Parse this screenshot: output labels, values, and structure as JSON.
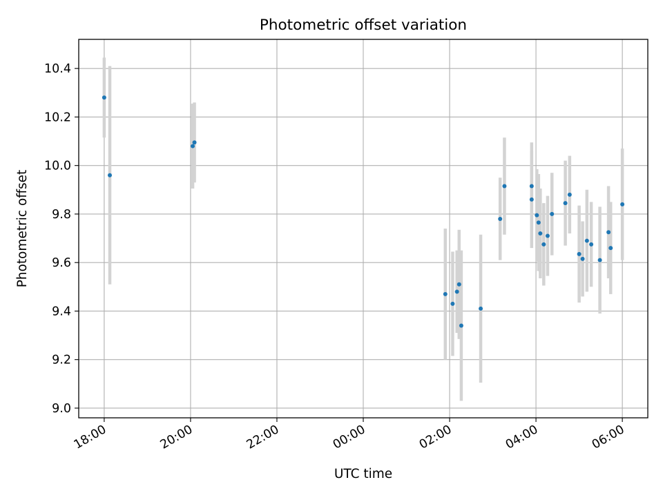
{
  "chart_data": {
    "type": "scatter",
    "title": "Photometric offset variation",
    "xlabel": "UTC time",
    "ylabel": "Photometric offset",
    "x_ticks": [
      {
        "label": "18:00",
        "hours": 0
      },
      {
        "label": "20:00",
        "hours": 2
      },
      {
        "label": "22:00",
        "hours": 4
      },
      {
        "label": "00:00",
        "hours": 6
      },
      {
        "label": "02:00",
        "hours": 8
      },
      {
        "label": "04:00",
        "hours": 10
      },
      {
        "label": "06:00",
        "hours": 12
      }
    ],
    "xlim_hours": [
      -0.59,
      12.59
    ],
    "y_ticks": [
      9.0,
      9.2,
      9.4,
      9.6,
      9.8,
      10.0,
      10.2,
      10.4
    ],
    "ylim": [
      8.96,
      10.52
    ],
    "grid": true,
    "colors": {
      "marker": "#1f77b4",
      "errorbar": "#d3d3d3",
      "grid": "#b0b0b0"
    },
    "points": [
      {
        "x": 0.0,
        "y": 10.28,
        "err": 0.165
      },
      {
        "x": 0.13,
        "y": 9.96,
        "err": 0.45
      },
      {
        "x": 2.05,
        "y": 10.08,
        "err": 0.175
      },
      {
        "x": 2.09,
        "y": 10.095,
        "err": 0.165
      },
      {
        "x": 7.9,
        "y": 9.47,
        "err": 0.27
      },
      {
        "x": 8.07,
        "y": 9.43,
        "err": 0.215
      },
      {
        "x": 8.17,
        "y": 9.48,
        "err": 0.17
      },
      {
        "x": 8.22,
        "y": 9.51,
        "err": 0.225
      },
      {
        "x": 8.27,
        "y": 9.34,
        "err": 0.31
      },
      {
        "x": 8.72,
        "y": 9.41,
        "err": 0.305
      },
      {
        "x": 9.17,
        "y": 9.78,
        "err": 0.17
      },
      {
        "x": 9.27,
        "y": 9.915,
        "err": 0.2
      },
      {
        "x": 9.9,
        "y": 9.915,
        "err": 0.18
      },
      {
        "x": 9.9,
        "y": 9.86,
        "err": 0.2
      },
      {
        "x": 10.02,
        "y": 9.795,
        "err": 0.19
      },
      {
        "x": 10.06,
        "y": 9.765,
        "err": 0.2
      },
      {
        "x": 10.1,
        "y": 9.72,
        "err": 0.185
      },
      {
        "x": 10.18,
        "y": 9.675,
        "err": 0.17
      },
      {
        "x": 10.27,
        "y": 9.71,
        "err": 0.165
      },
      {
        "x": 10.37,
        "y": 9.8,
        "err": 0.17
      },
      {
        "x": 10.68,
        "y": 9.845,
        "err": 0.175
      },
      {
        "x": 10.78,
        "y": 9.88,
        "err": 0.16
      },
      {
        "x": 11.0,
        "y": 9.635,
        "err": 0.2
      },
      {
        "x": 11.08,
        "y": 9.615,
        "err": 0.155
      },
      {
        "x": 11.18,
        "y": 9.69,
        "err": 0.21
      },
      {
        "x": 11.28,
        "y": 9.675,
        "err": 0.175
      },
      {
        "x": 11.48,
        "y": 9.61,
        "err": 0.22
      },
      {
        "x": 11.68,
        "y": 9.725,
        "err": 0.19
      },
      {
        "x": 11.73,
        "y": 9.66,
        "err": 0.19
      },
      {
        "x": 12.0,
        "y": 9.84,
        "err": 0.23
      }
    ]
  }
}
